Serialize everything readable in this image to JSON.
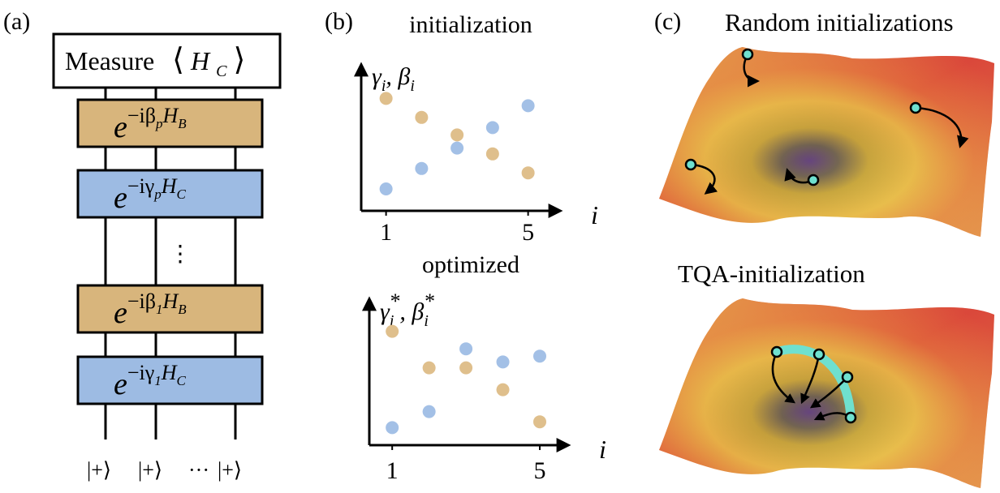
{
  "panel_a": {
    "label": "(a)",
    "measure": [
      "Measure",
      "⟨",
      "H",
      "C",
      "⟩"
    ],
    "gates": [
      [
        "e",
        "−iβ",
        "p",
        "H",
        "B"
      ],
      [
        "e",
        "−iγ",
        "p",
        "H",
        "C"
      ],
      [
        "e",
        "−iβ",
        "1",
        "H",
        "B"
      ],
      [
        "e",
        "−iγ",
        "1",
        "H",
        "C"
      ]
    ],
    "ellipsis": "⋮",
    "inputs": [
      "|+⟩",
      "|+⟩",
      "···",
      "|+⟩"
    ]
  },
  "panel_b": {
    "label": "(b)"
  },
  "chart_data": [
    {
      "type": "scatter",
      "title": "initialization",
      "y_label": [
        "γ",
        "i",
        ", β",
        "i"
      ],
      "x_label": "i",
      "x": [
        1,
        2,
        3,
        4,
        5
      ],
      "xlim": [
        0.3,
        5.9
      ],
      "xticks": [
        1,
        5
      ],
      "ylim": [
        0,
        1
      ],
      "series": [
        {
          "color": "#a3c0e6",
          "values": [
            0.15,
            0.29,
            0.43,
            0.57,
            0.72
          ]
        },
        {
          "color": "#dfbf8c",
          "values": [
            0.77,
            0.64,
            0.52,
            0.39,
            0.26
          ]
        }
      ]
    },
    {
      "type": "scatter",
      "title": "optimized",
      "y_label": [
        "γ",
        "i",
        "*",
        ", β",
        "i",
        "*"
      ],
      "x_label": "i",
      "x": [
        1,
        2,
        3,
        4,
        5
      ],
      "xlim": [
        0.38,
        5.77
      ],
      "xticks": [
        1,
        5
      ],
      "ylim": [
        0,
        1
      ],
      "series": [
        {
          "color": "#a3c0e6",
          "values": [
            0.12,
            0.23,
            0.66,
            0.57,
            0.61
          ]
        },
        {
          "color": "#dfbf8c",
          "values": [
            0.78,
            0.53,
            0.53,
            0.38,
            0.16
          ]
        }
      ]
    }
  ],
  "panel_c": {
    "label": "(c)",
    "top_title": "Random initializations",
    "bottom_title": "TQA-initialization"
  }
}
